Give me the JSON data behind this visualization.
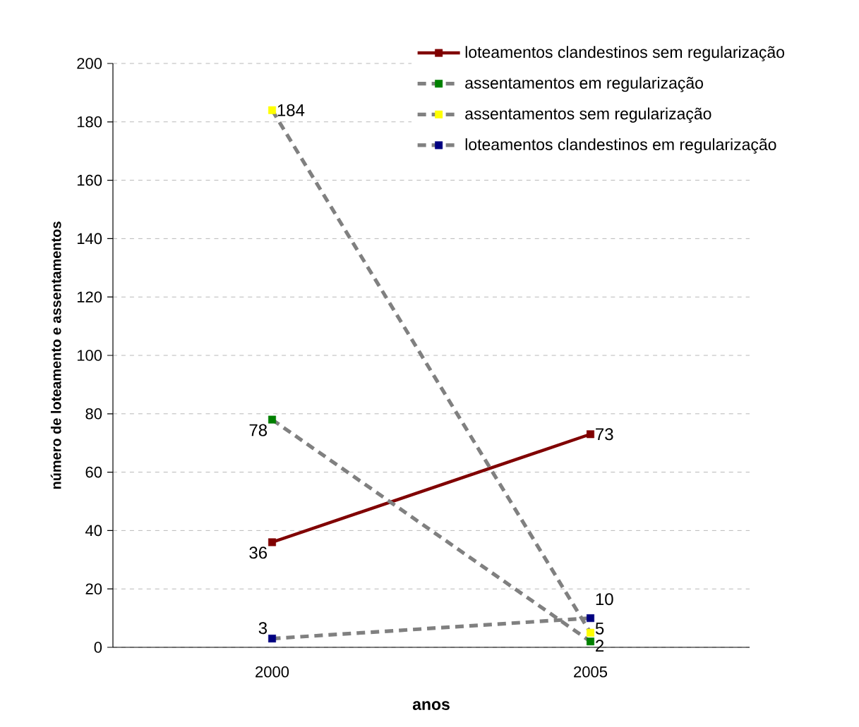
{
  "chart_data": {
    "type": "line",
    "xlabel": "anos",
    "ylabel": "número de loteamento e assentamentos",
    "categories": [
      "2000",
      "2005"
    ],
    "series": [
      {
        "name": "loteamentos clandestinos sem regularização",
        "color": "#800000",
        "line_style": "solid",
        "values": [
          36,
          73
        ]
      },
      {
        "name": "assentamentos em regularização",
        "color": "#808080",
        "colors": [
          "#008000",
          "#008000"
        ],
        "line_style": "dashed",
        "values": [
          78,
          2
        ]
      },
      {
        "name": "assentamentos sem regularização",
        "color": "#808080",
        "colors": [
          "#ffff00",
          "#ffff00"
        ],
        "line_style": "dashed",
        "values": [
          184,
          5
        ]
      },
      {
        "name": "loteamentos clandestinos em regularização",
        "color": "#808080",
        "colors": [
          "#000080",
          "#000080"
        ],
        "line_style": "dashed",
        "values": [
          3,
          10
        ]
      }
    ],
    "ylim": [
      0,
      200
    ],
    "yticks": [
      0,
      20,
      40,
      60,
      80,
      100,
      120,
      140,
      160,
      180,
      200
    ],
    "grid": "y",
    "legend": "top right",
    "marker": "square",
    "data_labels": true
  }
}
